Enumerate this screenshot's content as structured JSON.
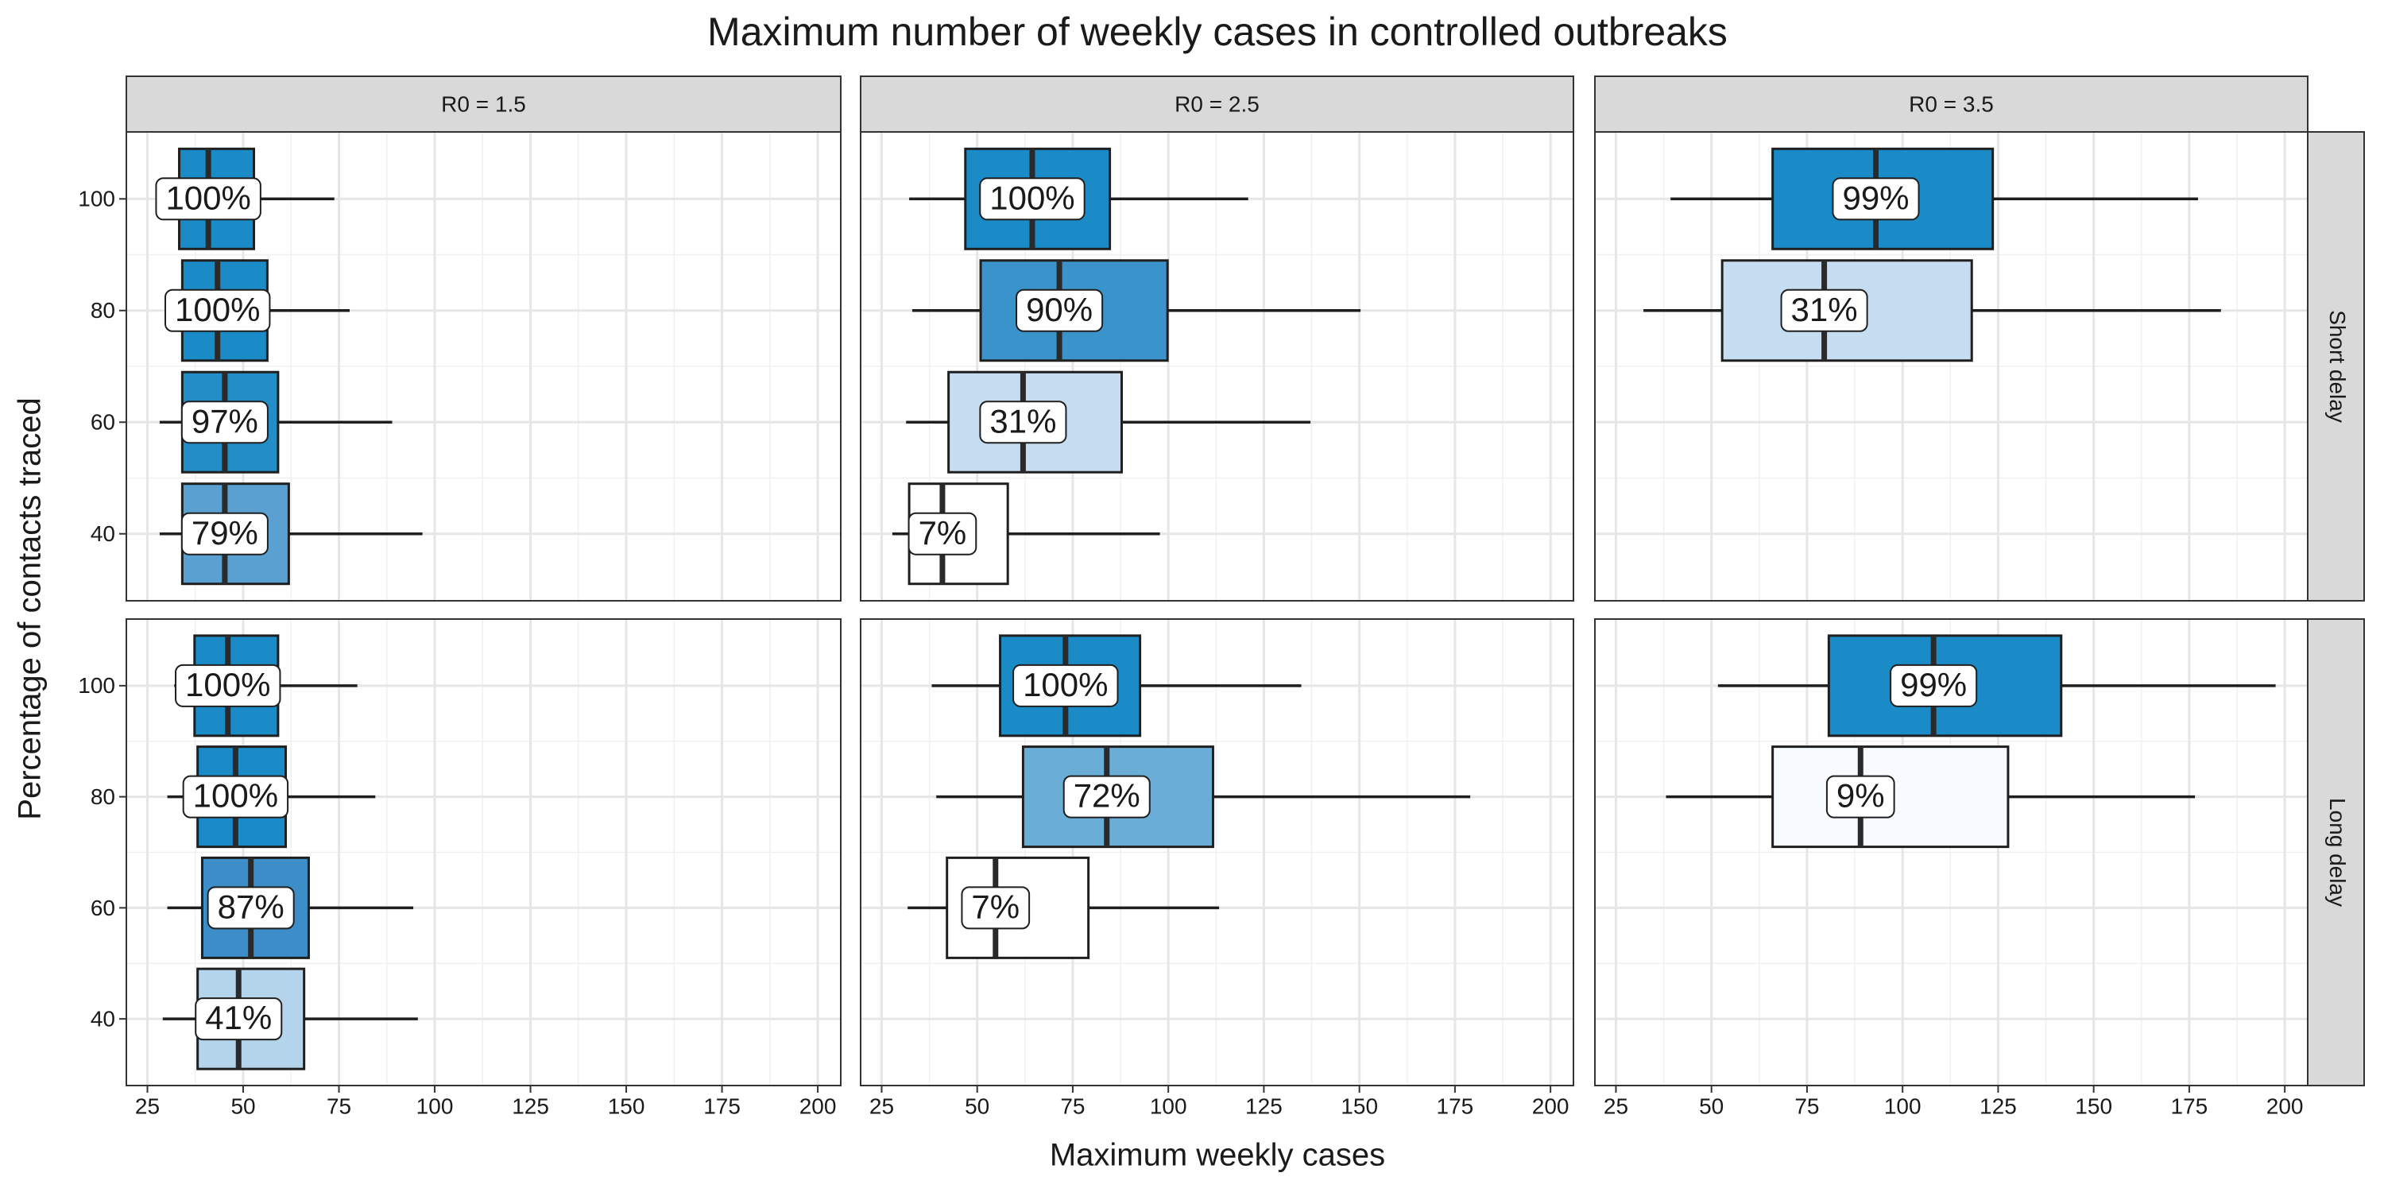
{
  "chart_data": {
    "type": "boxplot",
    "title": "Maximum number of weekly cases in controlled outbreaks",
    "x_label": "Maximum weekly cases",
    "y_label": "Percentage of contacts traced",
    "xlim": [
      19.5,
      206
    ],
    "xticks": [
      25,
      50,
      75,
      100,
      125,
      150,
      175,
      200
    ],
    "ylim": [
      28,
      112
    ],
    "yticks": [
      40,
      60,
      80,
      100
    ],
    "grid": true,
    "facet_columns": [
      "R0 = 1.5",
      "R0 = 2.5",
      "R0 = 3.5"
    ],
    "facet_rows": [
      {
        "label": "Short delay",
        "panels": [
          {
            "y": [
              100,
              80,
              60,
              40
            ],
            "min": [
              30,
              30,
              28.2,
              28.2
            ],
            "q1": [
              33.3,
              34.1,
              34.1,
              34.1
            ],
            "median": [
              40.9,
              43.3,
              45.2,
              45.2
            ],
            "q3": [
              52.8,
              56.3,
              59.1,
              61.9
            ],
            "max": [
              73.8,
              77.8,
              88.9,
              96.8
            ],
            "values": [
              100,
              100,
              97,
              79
            ],
            "value_labels": [
              "100%",
              "100%",
              "97%",
              "79%"
            ],
            "colors": [
              "#1a8bc6",
              "#1a8bc6",
              "#228dc7",
              "#5aa0d0"
            ]
          },
          {
            "y": [
              100,
              80,
              60,
              40
            ],
            "min": [
              32.2,
              33,
              31.4,
              27.8
            ],
            "q1": [
              46.9,
              50.9,
              42.5,
              32.2
            ],
            "median": [
              64.4,
              71.5,
              62,
              40.9
            ],
            "q3": [
              84.7,
              99.8,
              87.8,
              58
            ],
            "max": [
              120.9,
              150.3,
              137.2,
              97.8
            ],
            "values": [
              100,
              90,
              31,
              7
            ],
            "value_labels": [
              "100%",
              "90%",
              "31%",
              "7%"
            ],
            "colors": [
              "#1a8bc6",
              "#3a93ca",
              "#c6dcf0",
              "#ffffff"
            ]
          },
          {
            "y": [
              100,
              80
            ],
            "min": [
              39.3,
              32.2
            ],
            "q1": [
              66,
              52.8
            ],
            "median": [
              93,
              79.5
            ],
            "q3": [
              123.6,
              118.1
            ],
            "max": [
              177.3,
              183.3
            ],
            "values": [
              99,
              31
            ],
            "value_labels": [
              "99%",
              "31%"
            ],
            "colors": [
              "#1a8bc6",
              "#c6dcf0"
            ]
          }
        ]
      },
      {
        "label": "Long delay",
        "panels": [
          {
            "y": [
              100,
              80,
              60,
              40
            ],
            "min": [
              32,
              30.2,
              30.2,
              29
            ],
            "q1": [
              37.3,
              38.1,
              39.3,
              38.1
            ],
            "median": [
              46,
              48,
              52,
              48.8
            ],
            "q3": [
              59.1,
              61.1,
              67.1,
              65.9
            ],
            "max": [
              79.8,
              84.5,
              94.4,
              95.6
            ],
            "values": [
              100,
              100,
              87,
              41
            ],
            "value_labels": [
              "100%",
              "100%",
              "87%",
              "41%"
            ],
            "colors": [
              "#1a8bc6",
              "#1a8bc6",
              "#3d8ec8",
              "#b4d4ec"
            ]
          },
          {
            "y": [
              100,
              80,
              60
            ],
            "min": [
              38.1,
              39.3,
              31.8
            ],
            "q1": [
              56,
              62,
              42.1
            ],
            "median": [
              73.1,
              83.9,
              54.8
            ],
            "q3": [
              92.6,
              111.7,
              79.1
            ],
            "max": [
              134.8,
              179,
              113.3
            ],
            "values": [
              100,
              72,
              7
            ],
            "value_labels": [
              "100%",
              "72%",
              "7%"
            ],
            "colors": [
              "#1a8bc6",
              "#6aaed8",
              "#ffffff"
            ]
          },
          {
            "y": [
              100,
              80
            ],
            "min": [
              51.7,
              38.1
            ],
            "q1": [
              80.7,
              66
            ],
            "median": [
              108.1,
              89
            ],
            "q3": [
              141.5,
              127.6
            ],
            "max": [
              197.6,
              176.5
            ],
            "values": [
              99,
              9
            ],
            "value_labels": [
              "99%",
              "9%"
            ],
            "colors": [
              "#1a8bc6",
              "#f7fbff"
            ]
          }
        ]
      }
    ]
  }
}
